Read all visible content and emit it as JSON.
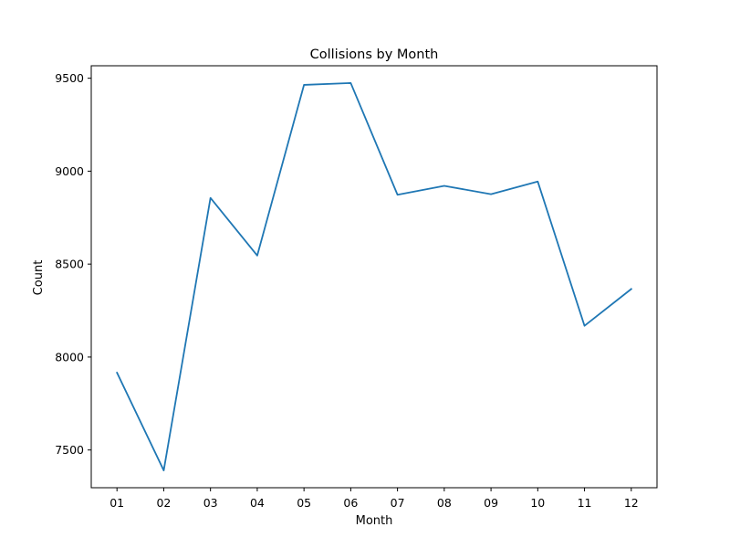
{
  "chart_data": {
    "type": "line",
    "title": "Collisions by Month",
    "xlabel": "Month",
    "ylabel": "Count",
    "categories": [
      "01",
      "02",
      "03",
      "04",
      "05",
      "06",
      "07",
      "08",
      "09",
      "10",
      "11",
      "12"
    ],
    "series": [
      {
        "values": [
          7916,
          7390,
          8856,
          8546,
          9464,
          9474,
          8873,
          8921,
          8876,
          8944,
          8168,
          8366
        ],
        "color": "#1f77b4"
      }
    ],
    "ylim": [
      7297,
      9567
    ],
    "yticks": [
      7500,
      8000,
      8500,
      9000,
      9500
    ],
    "ytick_labels": [
      "7500",
      "8000",
      "8500",
      "9000",
      "9500"
    ],
    "grid": false,
    "legend": "none"
  }
}
